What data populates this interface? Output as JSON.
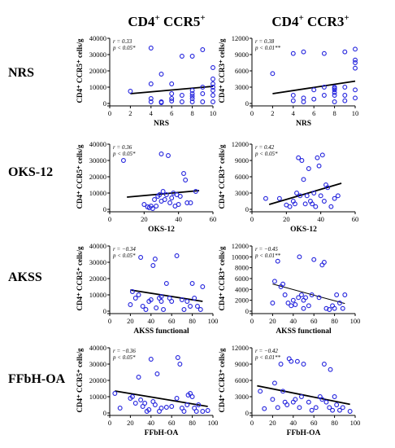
{
  "column_headers": [
    {
      "base": "CD4",
      "sup": "+",
      "mid": " CCR5",
      "sup2": "+"
    },
    {
      "base": "CD4",
      "sup": "+",
      "mid": " CCR3",
      "sup2": "+"
    }
  ],
  "row_labels": [
    "NRS",
    "OKS-12",
    "AKSS",
    "FFbH-OA"
  ],
  "colors": {
    "points": "#2222dd",
    "fit": "#000000",
    "axis": "#000000"
  },
  "chart_data": [
    {
      "type": "scatter",
      "row": 0,
      "col": 0,
      "xlabel": "NRS",
      "ylabel": "CD4⁺ CCR5⁺ cells/g",
      "xlim": [
        0,
        10
      ],
      "ylim": [
        0,
        40000
      ],
      "xticks": [
        0,
        2,
        4,
        6,
        8,
        10
      ],
      "yticks": [
        0,
        10000,
        20000,
        30000,
        40000
      ],
      "stat_lines": [
        "r = 0.33",
        "p < 0.05*"
      ],
      "fit": {
        "x": [
          2,
          10
        ],
        "y": [
          6000,
          10500
        ],
        "width": 1.8
      },
      "points": [
        [
          2,
          7500
        ],
        [
          4,
          34000
        ],
        [
          4,
          12000
        ],
        [
          4,
          3000
        ],
        [
          4,
          1000
        ],
        [
          5,
          18000
        ],
        [
          5,
          1000
        ],
        [
          5,
          500
        ],
        [
          6,
          3000
        ],
        [
          6,
          12000
        ],
        [
          6,
          6000
        ],
        [
          6,
          1500
        ],
        [
          7,
          29000
        ],
        [
          7,
          5000
        ],
        [
          7,
          1000
        ],
        [
          8,
          29000
        ],
        [
          8,
          8000
        ],
        [
          8,
          6000
        ],
        [
          8,
          4500
        ],
        [
          8,
          3000
        ],
        [
          8,
          1000
        ],
        [
          9,
          33000
        ],
        [
          9,
          10000
        ],
        [
          9,
          6000
        ],
        [
          9,
          1000
        ],
        [
          10,
          22000
        ],
        [
          10,
          15000
        ],
        [
          10,
          12000
        ],
        [
          10,
          10000
        ],
        [
          10,
          8000
        ],
        [
          10,
          5000
        ],
        [
          10,
          1000
        ]
      ]
    },
    {
      "type": "scatter",
      "row": 0,
      "col": 1,
      "xlabel": "NRS",
      "ylabel": "CD4⁺ CCR3⁺ cells/g",
      "xlim": [
        0,
        10
      ],
      "ylim": [
        0,
        12000
      ],
      "xticks": [
        0,
        2,
        4,
        6,
        8,
        10
      ],
      "yticks": [
        0,
        3000,
        6000,
        9000,
        12000
      ],
      "stat_lines": [
        "r = 0.38",
        "p < 0.01**"
      ],
      "fit": {
        "x": [
          2,
          10
        ],
        "y": [
          1800,
          4100
        ],
        "width": 1.8
      },
      "points": [
        [
          2,
          5500
        ],
        [
          4,
          9200
        ],
        [
          4,
          1500
        ],
        [
          4,
          500
        ],
        [
          5,
          9500
        ],
        [
          5,
          1000
        ],
        [
          5,
          300
        ],
        [
          6,
          2500
        ],
        [
          6,
          800
        ],
        [
          7,
          9200
        ],
        [
          7,
          3000
        ],
        [
          7,
          1500
        ],
        [
          8,
          3000
        ],
        [
          8,
          2800
        ],
        [
          8,
          2500
        ],
        [
          8,
          2000
        ],
        [
          8,
          1500
        ],
        [
          8,
          300
        ],
        [
          9,
          9500
        ],
        [
          9,
          3000
        ],
        [
          9,
          1500
        ],
        [
          9,
          500
        ],
        [
          10,
          10000
        ],
        [
          10,
          8000
        ],
        [
          10,
          7500
        ],
        [
          10,
          6500
        ],
        [
          10,
          2500
        ],
        [
          10,
          1000
        ]
      ]
    },
    {
      "type": "scatter",
      "row": 1,
      "col": 0,
      "xlabel": "OKS-12",
      "ylabel": "CD4⁺ CCR5⁺ cells/g",
      "xlim": [
        0,
        60
      ],
      "ylim": [
        0,
        40000
      ],
      "xticks": [
        0,
        20,
        40,
        60
      ],
      "yticks": [
        0,
        10000,
        20000,
        30000,
        40000
      ],
      "stat_lines": [
        "r = 0.36",
        "p < 0.05*"
      ],
      "fit": {
        "x": [
          10,
          52
        ],
        "y": [
          7500,
          11500
        ],
        "width": 1.8
      },
      "points": [
        [
          8,
          30000
        ],
        [
          20,
          3000
        ],
        [
          22,
          1500
        ],
        [
          23,
          1000
        ],
        [
          24,
          2000
        ],
        [
          25,
          500
        ],
        [
          26,
          6000
        ],
        [
          27,
          2000
        ],
        [
          28,
          8000
        ],
        [
          29,
          9000
        ],
        [
          30,
          34000
        ],
        [
          30,
          5000
        ],
        [
          31,
          11000
        ],
        [
          32,
          6000
        ],
        [
          33,
          9000
        ],
        [
          34,
          33000
        ],
        [
          35,
          4000
        ],
        [
          36,
          7000
        ],
        [
          37,
          10000
        ],
        [
          38,
          2000
        ],
        [
          39,
          9000
        ],
        [
          40,
          3000
        ],
        [
          41,
          8000
        ],
        [
          43,
          22000
        ],
        [
          44,
          18000
        ],
        [
          45,
          4000
        ],
        [
          47,
          4000
        ],
        [
          50,
          11000
        ]
      ]
    },
    {
      "type": "scatter",
      "row": 1,
      "col": 1,
      "xlabel": "OKS-12",
      "ylabel": "CD4⁺ CCR3⁺ cells/g",
      "xlim": [
        0,
        60
      ],
      "ylim": [
        0,
        12000
      ],
      "xticks": [
        0,
        20,
        40,
        60
      ],
      "yticks": [
        0,
        3000,
        6000,
        9000,
        12000
      ],
      "stat_lines": [
        "r = 0.42",
        "p < 0.05*"
      ],
      "fit": {
        "x": [
          10,
          52
        ],
        "y": [
          900,
          4800
        ],
        "width": 1.8
      },
      "points": [
        [
          8,
          2000
        ],
        [
          16,
          2000
        ],
        [
          20,
          800
        ],
        [
          22,
          500
        ],
        [
          24,
          1500
        ],
        [
          25,
          1000
        ],
        [
          26,
          3000
        ],
        [
          27,
          9500
        ],
        [
          28,
          2500
        ],
        [
          29,
          9000
        ],
        [
          30,
          5500
        ],
        [
          31,
          1000
        ],
        [
          32,
          2500
        ],
        [
          33,
          7500
        ],
        [
          34,
          1500
        ],
        [
          35,
          1000
        ],
        [
          36,
          3000
        ],
        [
          37,
          500
        ],
        [
          38,
          9500
        ],
        [
          39,
          8000
        ],
        [
          40,
          2500
        ],
        [
          41,
          10000
        ],
        [
          42,
          1500
        ],
        [
          43,
          4500
        ],
        [
          44,
          4000
        ],
        [
          46,
          500
        ],
        [
          48,
          2000
        ],
        [
          50,
          2500
        ]
      ]
    },
    {
      "type": "scatter",
      "row": 2,
      "col": 0,
      "xlabel": "AKSS functional",
      "ylabel": "CD4⁺ CCR5⁺ cells/g",
      "xlim": [
        0,
        100
      ],
      "ylim": [
        0,
        40000
      ],
      "xticks": [
        0,
        20,
        40,
        60,
        80,
        100
      ],
      "yticks": [
        0,
        10000,
        20000,
        30000,
        40000
      ],
      "stat_lines": [
        "r = −0.34",
        "p < 0.05*"
      ],
      "fit": {
        "x": [
          20,
          90
        ],
        "y": [
          13000,
          6000
        ],
        "width": 1.8
      },
      "points": [
        [
          20,
          4000
        ],
        [
          22,
          12000
        ],
        [
          25,
          8000
        ],
        [
          28,
          10000
        ],
        [
          30,
          33000
        ],
        [
          32,
          3000
        ],
        [
          35,
          1000
        ],
        [
          38,
          6000
        ],
        [
          40,
          7000
        ],
        [
          42,
          28000
        ],
        [
          44,
          32000
        ],
        [
          45,
          2000
        ],
        [
          48,
          8000
        ],
        [
          50,
          9000
        ],
        [
          50,
          6000
        ],
        [
          52,
          1000
        ],
        [
          55,
          17000
        ],
        [
          58,
          8000
        ],
        [
          60,
          6000
        ],
        [
          65,
          34000
        ],
        [
          70,
          7000
        ],
        [
          72,
          1000
        ],
        [
          75,
          6000
        ],
        [
          78,
          3000
        ],
        [
          80,
          17000
        ],
        [
          82,
          8000
        ],
        [
          85,
          3000
        ],
        [
          88,
          1000
        ],
        [
          90,
          15000
        ]
      ]
    },
    {
      "type": "scatter",
      "row": 2,
      "col": 1,
      "xlabel": "AKSS functional",
      "ylabel": "CD4⁺ CCR3⁺ cells/g",
      "xlim": [
        0,
        100
      ],
      "ylim": [
        0,
        12000
      ],
      "xticks": [
        0,
        20,
        40,
        60,
        80,
        100
      ],
      "yticks": [
        0,
        2000,
        4000,
        6000,
        8000,
        10000,
        12000
      ],
      "stat_lines": [
        "r = −0.45",
        "p < 0.01**"
      ],
      "fit": {
        "x": [
          20,
          90
        ],
        "y": [
          5000,
          1400
        ],
        "width": 1.0
      },
      "points": [
        [
          20,
          1500
        ],
        [
          22,
          5500
        ],
        [
          25,
          9200
        ],
        [
          28,
          4500
        ],
        [
          30,
          5000
        ],
        [
          32,
          3000
        ],
        [
          35,
          1500
        ],
        [
          38,
          1000
        ],
        [
          40,
          2000
        ],
        [
          42,
          1200
        ],
        [
          45,
          2500
        ],
        [
          46,
          10000
        ],
        [
          48,
          3000
        ],
        [
          50,
          2000
        ],
        [
          50,
          500
        ],
        [
          52,
          2500
        ],
        [
          55,
          1000
        ],
        [
          58,
          3000
        ],
        [
          60,
          9500
        ],
        [
          65,
          2500
        ],
        [
          68,
          8500
        ],
        [
          70,
          9000
        ],
        [
          72,
          500
        ],
        [
          75,
          300
        ],
        [
          78,
          1000
        ],
        [
          80,
          500
        ],
        [
          82,
          3000
        ],
        [
          85,
          1500
        ],
        [
          88,
          500
        ],
        [
          90,
          3000
        ]
      ]
    },
    {
      "type": "scatter",
      "row": 3,
      "col": 0,
      "xlabel": "FFbH-OA",
      "ylabel": "CD4⁺ CCR5⁺ cells/g",
      "xlim": [
        0,
        100
      ],
      "ylim": [
        0,
        40000
      ],
      "xticks": [
        0,
        20,
        40,
        60,
        80,
        100
      ],
      "yticks": [
        0,
        10000,
        20000,
        30000,
        40000
      ],
      "stat_lines": [
        "r = −0.36",
        "p < 0.05*"
      ],
      "fit": {
        "x": [
          5,
          95
        ],
        "y": [
          13500,
          4000
        ],
        "width": 1.8
      },
      "points": [
        [
          5,
          12000
        ],
        [
          10,
          3000
        ],
        [
          20,
          9000
        ],
        [
          22,
          10000
        ],
        [
          25,
          6000
        ],
        [
          28,
          22000
        ],
        [
          30,
          8000
        ],
        [
          32,
          4000
        ],
        [
          34,
          6000
        ],
        [
          36,
          1000
        ],
        [
          38,
          2000
        ],
        [
          40,
          33000
        ],
        [
          42,
          7000
        ],
        [
          44,
          5000
        ],
        [
          46,
          24000
        ],
        [
          48,
          1000
        ],
        [
          50,
          3000
        ],
        [
          55,
          3500
        ],
        [
          60,
          4000
        ],
        [
          65,
          9000
        ],
        [
          66,
          34000
        ],
        [
          68,
          30000
        ],
        [
          70,
          3000
        ],
        [
          72,
          1000
        ],
        [
          75,
          5000
        ],
        [
          76,
          11000
        ],
        [
          78,
          12000
        ],
        [
          80,
          10000
        ],
        [
          82,
          3000
        ],
        [
          84,
          1000
        ],
        [
          86,
          5000
        ],
        [
          90,
          1000
        ],
        [
          95,
          1500
        ]
      ]
    },
    {
      "type": "scatter",
      "row": 3,
      "col": 1,
      "xlabel": "FFbH-OA",
      "ylabel": "CD4⁺ CCR3⁺ cells/g",
      "xlim": [
        0,
        100
      ],
      "ylim": [
        0,
        12000
      ],
      "xticks": [
        0,
        20,
        40,
        60,
        80,
        100
      ],
      "yticks": [
        0,
        3000,
        6000,
        9000,
        12000
      ],
      "stat_lines": [
        "r = −0.42",
        "p < 0.01**"
      ],
      "fit": {
        "x": [
          5,
          95
        ],
        "y": [
          5000,
          1600
        ],
        "width": 1.8
      },
      "points": [
        [
          8,
          4000
        ],
        [
          12,
          800
        ],
        [
          20,
          2500
        ],
        [
          22,
          5500
        ],
        [
          25,
          1000
        ],
        [
          28,
          9000
        ],
        [
          30,
          4000
        ],
        [
          32,
          2000
        ],
        [
          34,
          1500
        ],
        [
          36,
          10000
        ],
        [
          38,
          9500
        ],
        [
          40,
          2000
        ],
        [
          42,
          2500
        ],
        [
          44,
          9500
        ],
        [
          46,
          1000
        ],
        [
          48,
          3000
        ],
        [
          50,
          9000
        ],
        [
          55,
          2000
        ],
        [
          58,
          500
        ],
        [
          62,
          1000
        ],
        [
          66,
          3000
        ],
        [
          68,
          2500
        ],
        [
          70,
          9000
        ],
        [
          72,
          2000
        ],
        [
          75,
          1000
        ],
        [
          76,
          8000
        ],
        [
          78,
          500
        ],
        [
          80,
          3000
        ],
        [
          82,
          1500
        ],
        [
          85,
          500
        ],
        [
          88,
          1000
        ],
        [
          95,
          300
        ]
      ]
    }
  ]
}
